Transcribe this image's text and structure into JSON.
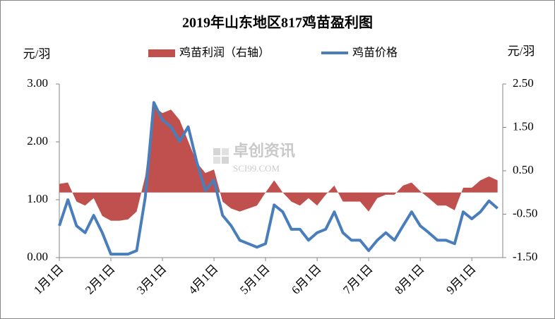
{
  "chart_data": {
    "type": "combo",
    "title": "2019年山东地区817鸡苗盈利图",
    "y_label": "元/羽",
    "y2_label": "元/羽",
    "watermark": [
      "卓创资讯",
      "SCI99.COM"
    ],
    "grid": false,
    "categories": [
      "1月1日",
      null,
      null,
      null,
      null,
      null,
      "2月1日",
      null,
      null,
      null,
      null,
      null,
      "3月1日",
      null,
      null,
      null,
      null,
      null,
      "4月1日",
      null,
      null,
      null,
      null,
      null,
      "5月1日",
      null,
      null,
      null,
      null,
      null,
      "6月1日",
      null,
      null,
      null,
      null,
      null,
      "7月1日",
      null,
      null,
      null,
      null,
      null,
      "8月1日",
      null,
      null,
      null,
      null,
      null,
      "9月1日",
      null,
      null,
      null
    ],
    "ylim": [
      0,
      3
    ],
    "yticks": [
      {
        "value": 0,
        "label": "0.00"
      },
      {
        "value": 1,
        "label": "1.00"
      },
      {
        "value": 2,
        "label": "2.00"
      },
      {
        "value": 3,
        "label": "3.00"
      }
    ],
    "y2lim": [
      -1.5,
      2.5
    ],
    "y2ticks": [
      {
        "value": -1.5,
        "label": "-1.50"
      },
      {
        "value": -0.5,
        "label": "-0.50"
      },
      {
        "value": 0.5,
        "label": "0.50"
      },
      {
        "value": 1.5,
        "label": "1.50"
      },
      {
        "value": 2.5,
        "label": "2.50"
      }
    ],
    "series": [
      {
        "name": "鸡苗利润（右轴）",
        "type": "area",
        "axis": "y2",
        "color": "#c0504d",
        "values": [
          0.2,
          0.23,
          -0.21,
          -0.3,
          -0.13,
          -0.54,
          -0.65,
          -0.65,
          -0.62,
          -0.44,
          0.37,
          1.99,
          1.83,
          1.91,
          1.67,
          1.18,
          0.69,
          0.45,
          0.53,
          -0.21,
          -0.37,
          -0.44,
          -0.37,
          -0.3,
          0,
          0.28,
          0,
          -0.21,
          -0.3,
          -0.13,
          -0.3,
          -0.05,
          0.16,
          -0.21,
          -0.21,
          -0.21,
          -0.44,
          -0.13,
          -0.05,
          -0.05,
          0.16,
          0.23,
          0.03,
          -0.13,
          -0.3,
          -0.3,
          -0.41,
          0.11,
          0.11,
          0.28,
          0.37,
          0.28
        ]
      },
      {
        "name": "鸡苗价格",
        "type": "line",
        "color": "#4a7ebb",
        "values": [
          0.55,
          1.0,
          0.55,
          0.43,
          0.73,
          0.43,
          0.06,
          0.06,
          0.06,
          0.12,
          1.04,
          2.68,
          2.38,
          2.26,
          2.01,
          2.26,
          1.65,
          1.16,
          1.34,
          0.73,
          0.55,
          0.3,
          0.24,
          0.18,
          0.24,
          0.91,
          0.79,
          0.49,
          0.49,
          0.3,
          0.43,
          0.49,
          0.79,
          0.43,
          0.3,
          0.3,
          0.12,
          0.3,
          0.43,
          0.3,
          0.55,
          0.79,
          0.55,
          0.43,
          0.3,
          0.3,
          0.24,
          0.79,
          0.67,
          0.79,
          0.98,
          0.85
        ]
      }
    ]
  }
}
